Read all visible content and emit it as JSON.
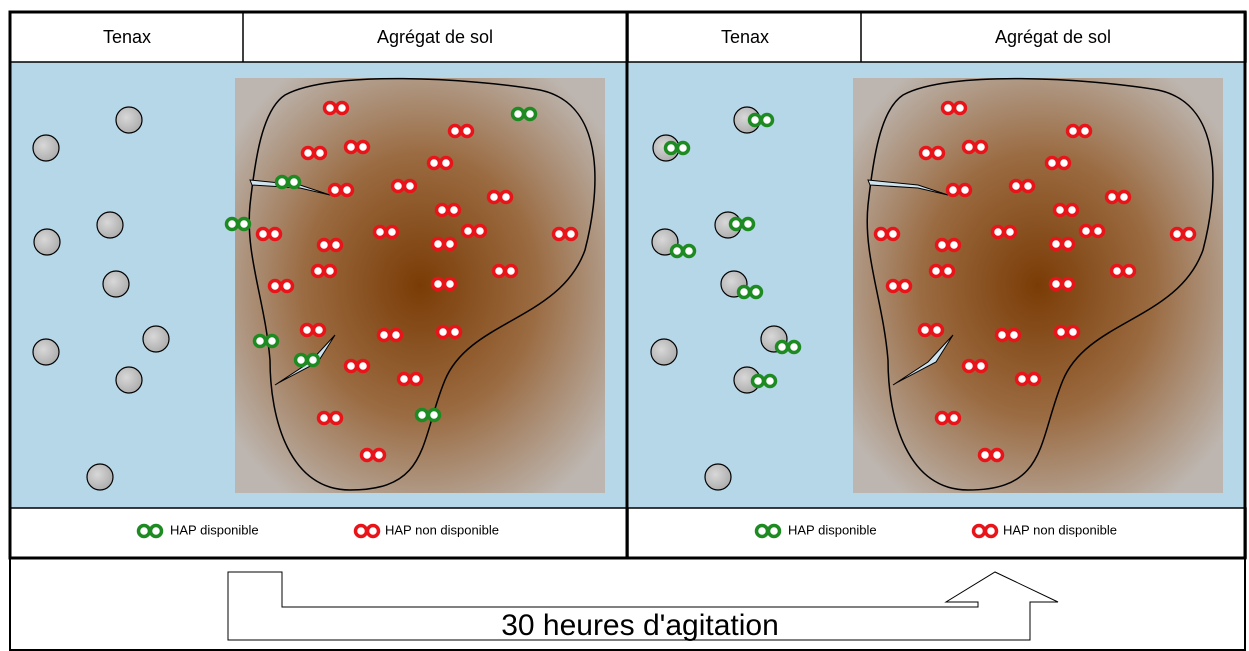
{
  "panels": [
    {
      "headers": [
        "Tenax",
        "Agrégat de sol"
      ],
      "legend": [
        "HAP disponible",
        "HAP non disponible"
      ]
    },
    {
      "headers": [
        "Tenax",
        "Agrégat de sol"
      ],
      "legend": [
        "HAP disponible",
        "HAP non disponible"
      ]
    }
  ],
  "caption": "30 heures d'agitation"
}
